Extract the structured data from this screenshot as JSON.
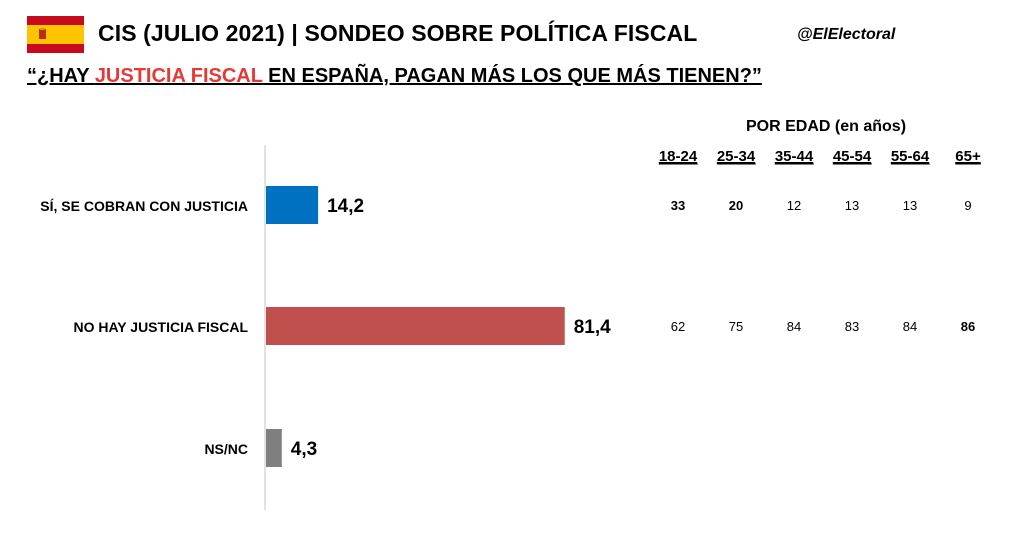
{
  "header": {
    "title": "CIS (JULIO 2021) | SONDEO SOBRE POLÍTICA FISCAL",
    "handle": "@ElElectoral",
    "question_pre": "“¿HAY ",
    "question_highlight": "JUSTICIA FISCAL",
    "question_post": " EN ESPAÑA, PAGAN MÁS LOS QUE MÁS TIENEN?”"
  },
  "colors": {
    "highlight": "#e53935",
    "flag_red": "#c60b1e",
    "flag_yellow": "#ffc400"
  },
  "chart_data": {
    "type": "bar",
    "orientation": "horizontal",
    "categories": [
      "SÍ, SE COBRAN CON JUSTICIA",
      "NO HAY JUSTICIA FISCAL",
      "NS/NC"
    ],
    "values": [
      14.2,
      81.4,
      4.3
    ],
    "value_labels": [
      "14,2",
      "81,4",
      "4,3"
    ],
    "colors": [
      "#0070c0",
      "#c0504d",
      "#7f7f7f"
    ],
    "xlim": [
      0,
      100
    ],
    "age_breakdown": {
      "title": "POR EDAD (en años)",
      "groups": [
        "18-24",
        "25-34",
        "35-44",
        "45-54",
        "55-64",
        "65+"
      ],
      "rows": [
        {
          "values": [
            "33",
            "20",
            "12",
            "13",
            "13",
            "9"
          ],
          "bold": [
            true,
            true,
            false,
            false,
            false,
            false
          ]
        },
        {
          "values": [
            "62",
            "75",
            "84",
            "83",
            "84",
            "86"
          ],
          "bold": [
            false,
            false,
            false,
            false,
            false,
            true
          ]
        },
        {
          "values": [],
          "bold": []
        }
      ]
    }
  }
}
